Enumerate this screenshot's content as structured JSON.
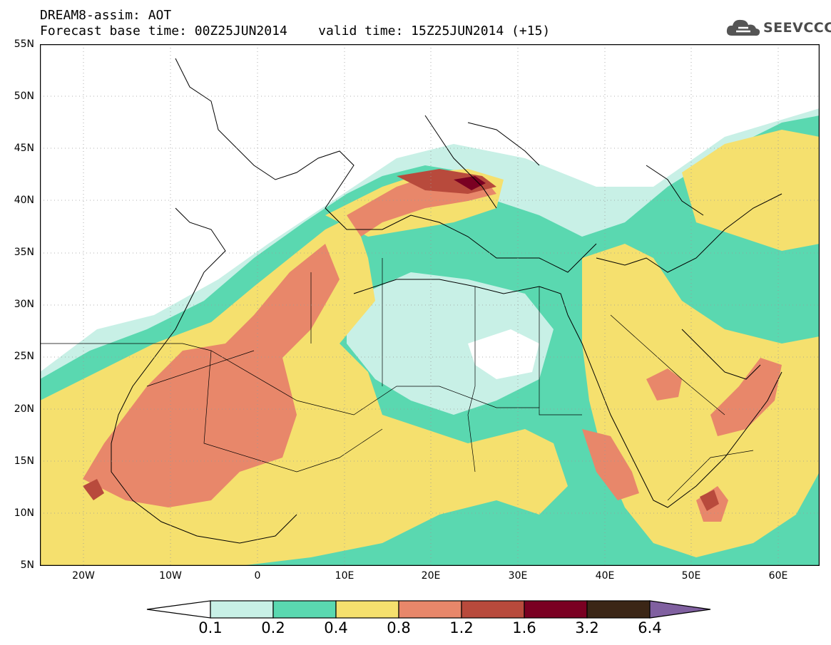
{
  "title": {
    "line1": "DREAM8-assim: AOT",
    "line2": "Forecast base time: 00Z25JUN2014    valid time: 15Z25JUN2014 (+15)"
  },
  "logo": {
    "text": "SEEVCCC",
    "icon": "cloud-icon"
  },
  "map": {
    "variable": "AOT",
    "lat_labels": [
      "55N",
      "50N",
      "45N",
      "40N",
      "35N",
      "30N",
      "25N",
      "20N",
      "15N",
      "10N",
      "5N"
    ],
    "lon_labels": [
      "20W",
      "10W",
      "0",
      "10E",
      "20E",
      "30E",
      "40E",
      "50E",
      "60E"
    ],
    "lon_range": [
      -25,
      65
    ],
    "lat_range": [
      5,
      55
    ]
  },
  "colorbar": {
    "levels": [
      "0.1",
      "0.2",
      "0.4",
      "0.8",
      "1.2",
      "1.6",
      "3.2",
      "6.4"
    ],
    "colors": [
      "#ffffff",
      "#c8f0e6",
      "#5ad8b0",
      "#f5e06e",
      "#e8876a",
      "#b84a3c",
      "#7a0022",
      "#3b2616",
      "#8060a0"
    ]
  }
}
